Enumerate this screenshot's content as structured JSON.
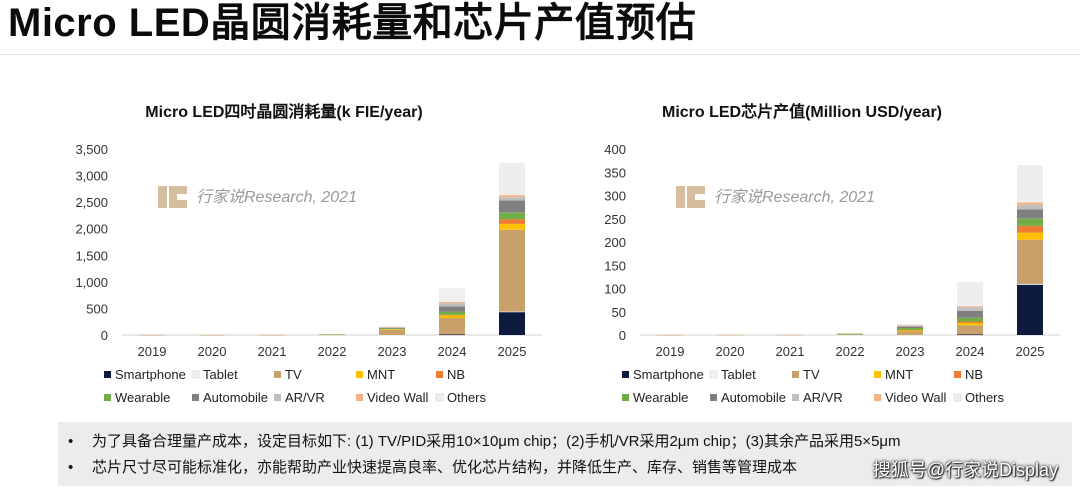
{
  "page": {
    "title": "Micro LED晶圆消耗量和芯片产值预估"
  },
  "notes": [
    "为了具备合理量产成本，设定目标如下: (1) TV/PID采用10×10μm chip；(2)手机/VR采用2μm chip；(3)其余产品采用5×5μm",
    "芯片尺寸尽可能标准化，亦能帮助产业快速提高良率、优化芯片结构，并降低生产、库存、销售等管理成本"
  ],
  "footer_watermark": "搜狐号@行家说Display",
  "legend": [
    {
      "name": "Smartphone",
      "color": "#0e1a40"
    },
    {
      "name": "Tablet",
      "color": "#f0f0f0"
    },
    {
      "name": "TV",
      "color": "#c8a06a"
    },
    {
      "name": "MNT",
      "color": "#ffc000"
    },
    {
      "name": "NB",
      "color": "#ed7d31"
    },
    {
      "name": "Wearable",
      "color": "#70ad47"
    },
    {
      "name": "Automobile",
      "color": "#808080"
    },
    {
      "name": "AR/VR",
      "color": "#bfbfbf"
    },
    {
      "name": "Video Wall",
      "color": "#f4b183"
    },
    {
      "name": "Others",
      "color": "#eeeeee"
    }
  ],
  "chart_data": [
    {
      "type": "bar",
      "stacked": true,
      "title": "Micro LED四吋晶圆消耗量(k FIE/year)",
      "watermark": "行家说Research, 2021",
      "categories": [
        "2019",
        "2020",
        "2021",
        "2022",
        "2023",
        "2024",
        "2025"
      ],
      "ylim": [
        0,
        3500
      ],
      "yticks": [
        "0",
        "500",
        "1,000",
        "1,500",
        "2,000",
        "2,500",
        "3,000",
        "3,500"
      ],
      "ytick_values": [
        0,
        500,
        1000,
        1500,
        2000,
        2500,
        3000,
        3500
      ],
      "grid": false,
      "legend_position": "bottom",
      "series": [
        {
          "name": "Smartphone",
          "values": [
            0,
            0,
            0,
            0,
            0,
            10,
            430
          ]
        },
        {
          "name": "Tablet",
          "values": [
            0,
            0,
            0,
            0,
            0,
            0,
            10
          ]
        },
        {
          "name": "TV",
          "values": [
            1,
            1,
            2,
            10,
            100,
            310,
            1540
          ]
        },
        {
          "name": "MNT",
          "values": [
            0,
            0,
            0,
            0,
            10,
            50,
            110
          ]
        },
        {
          "name": "NB",
          "values": [
            0,
            0,
            0,
            0,
            0,
            10,
            90
          ]
        },
        {
          "name": "Wearable",
          "values": [
            0,
            0,
            0,
            3,
            15,
            60,
            120
          ]
        },
        {
          "name": "Automobile",
          "values": [
            0,
            0,
            0,
            0,
            10,
            100,
            230
          ]
        },
        {
          "name": "AR/VR",
          "values": [
            0,
            0,
            0,
            0,
            10,
            60,
            60
          ]
        },
        {
          "name": "Video Wall",
          "values": [
            0,
            0,
            0,
            0,
            10,
            20,
            40
          ]
        },
        {
          "name": "Others",
          "values": [
            0,
            0,
            0,
            0,
            10,
            260,
            610
          ]
        }
      ]
    },
    {
      "type": "bar",
      "stacked": true,
      "title": "Micro LED芯片产值(Million USD/year)",
      "watermark": "行家说Research, 2021",
      "categories": [
        "2019",
        "2020",
        "2021",
        "2022",
        "2023",
        "2024",
        "2025"
      ],
      "ylim": [
        0,
        400
      ],
      "yticks": [
        "0",
        "50",
        "100",
        "150",
        "200",
        "250",
        "300",
        "350",
        "400"
      ],
      "ytick_values": [
        0,
        50,
        100,
        150,
        200,
        250,
        300,
        350,
        400
      ],
      "grid": false,
      "legend_position": "bottom",
      "series": [
        {
          "name": "Smartphone",
          "values": [
            0,
            0,
            0,
            0,
            0,
            1,
            108
          ]
        },
        {
          "name": "Tablet",
          "values": [
            0,
            0,
            0,
            0,
            0,
            0,
            2
          ]
        },
        {
          "name": "TV",
          "values": [
            0.3,
            0.4,
            0.5,
            2,
            8,
            20,
            95
          ]
        },
        {
          "name": "MNT",
          "values": [
            0,
            0,
            0,
            0,
            2,
            5,
            15
          ]
        },
        {
          "name": "NB",
          "values": [
            0,
            0,
            0,
            0,
            1,
            3,
            15
          ]
        },
        {
          "name": "Wearable",
          "values": [
            0,
            0,
            0,
            1,
            4,
            8,
            15
          ]
        },
        {
          "name": "Automobile",
          "values": [
            0,
            0,
            0,
            0,
            3,
            15,
            20
          ]
        },
        {
          "name": "AR/VR",
          "values": [
            0,
            0,
            0,
            0,
            2,
            8,
            10
          ]
        },
        {
          "name": "Video Wall",
          "values": [
            0,
            0,
            0,
            0,
            1,
            2,
            5
          ]
        },
        {
          "name": "Others",
          "values": [
            0,
            0,
            0,
            0,
            3,
            52,
            80
          ]
        }
      ]
    }
  ]
}
